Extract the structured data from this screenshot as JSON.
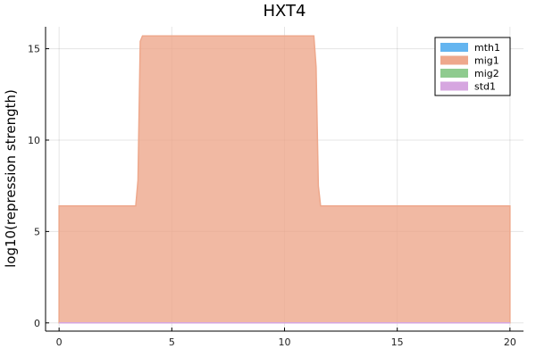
{
  "chart_data": {
    "type": "area",
    "title": "HXT4",
    "xlabel": "",
    "ylabel": "log10(repression strength)",
    "xlim": [
      -0.6,
      20.6
    ],
    "ylim": [
      -0.45,
      16.2
    ],
    "xticks": [
      0,
      5,
      10,
      15,
      20
    ],
    "yticks": [
      0,
      5,
      10,
      15
    ],
    "grid": true,
    "legend_position": "top-right",
    "series": [
      {
        "name": "mth1",
        "color": "#64b5f0",
        "x": [
          0,
          20
        ],
        "y": [
          0,
          0
        ]
      },
      {
        "name": "mig1",
        "color": "#eea88c",
        "x": [
          0,
          3.4,
          3.5,
          3.6,
          3.7,
          11.3,
          11.4,
          11.5,
          11.6,
          20
        ],
        "y": [
          6.4,
          6.4,
          7.8,
          15.4,
          15.7,
          15.7,
          14.0,
          7.5,
          6.4,
          6.4
        ]
      },
      {
        "name": "mig2",
        "color": "#8fcb8f",
        "x": [
          0,
          20
        ],
        "y": [
          0,
          0
        ]
      },
      {
        "name": "std1",
        "color": "#d6a6e0",
        "x": [
          0,
          20
        ],
        "y": [
          0,
          0
        ]
      }
    ]
  }
}
